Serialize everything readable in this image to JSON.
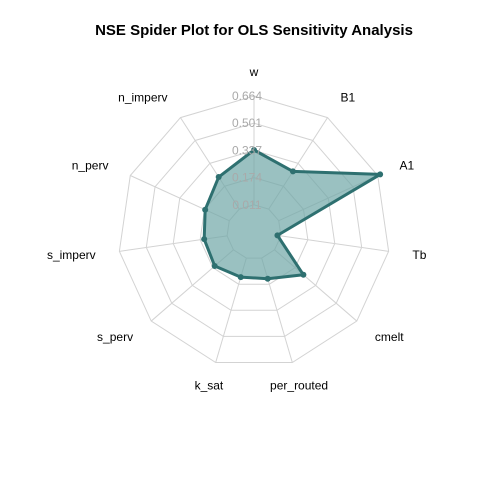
{
  "chart_data": {
    "type": "radar",
    "title": "NSE Spider Plot for OLS Sensitivity Analysis",
    "axes": [
      "w",
      "B1",
      "A1",
      "Tb",
      "cmelt",
      "per_routed",
      "k_sat",
      "s_perv",
      "s_imperv",
      "n_perv",
      "n_imperv"
    ],
    "tick_labels": [
      "0.011",
      "0.174",
      "0.337",
      "0.501",
      "0.664"
    ],
    "rlim": [
      -0.152,
      0.664
    ],
    "series": [
      {
        "values": [
          0.34,
          0.28,
          0.68,
          -0.01,
          0.24,
          0.14,
          0.13,
          0.16,
          0.15,
          0.17,
          0.24
        ]
      }
    ],
    "colors": {
      "fill": "#6fa6a6",
      "stroke": "#2e7070",
      "grid": "#d3d3d3",
      "tick": "#a9a9a9"
    },
    "grid": true,
    "legend": "none"
  }
}
